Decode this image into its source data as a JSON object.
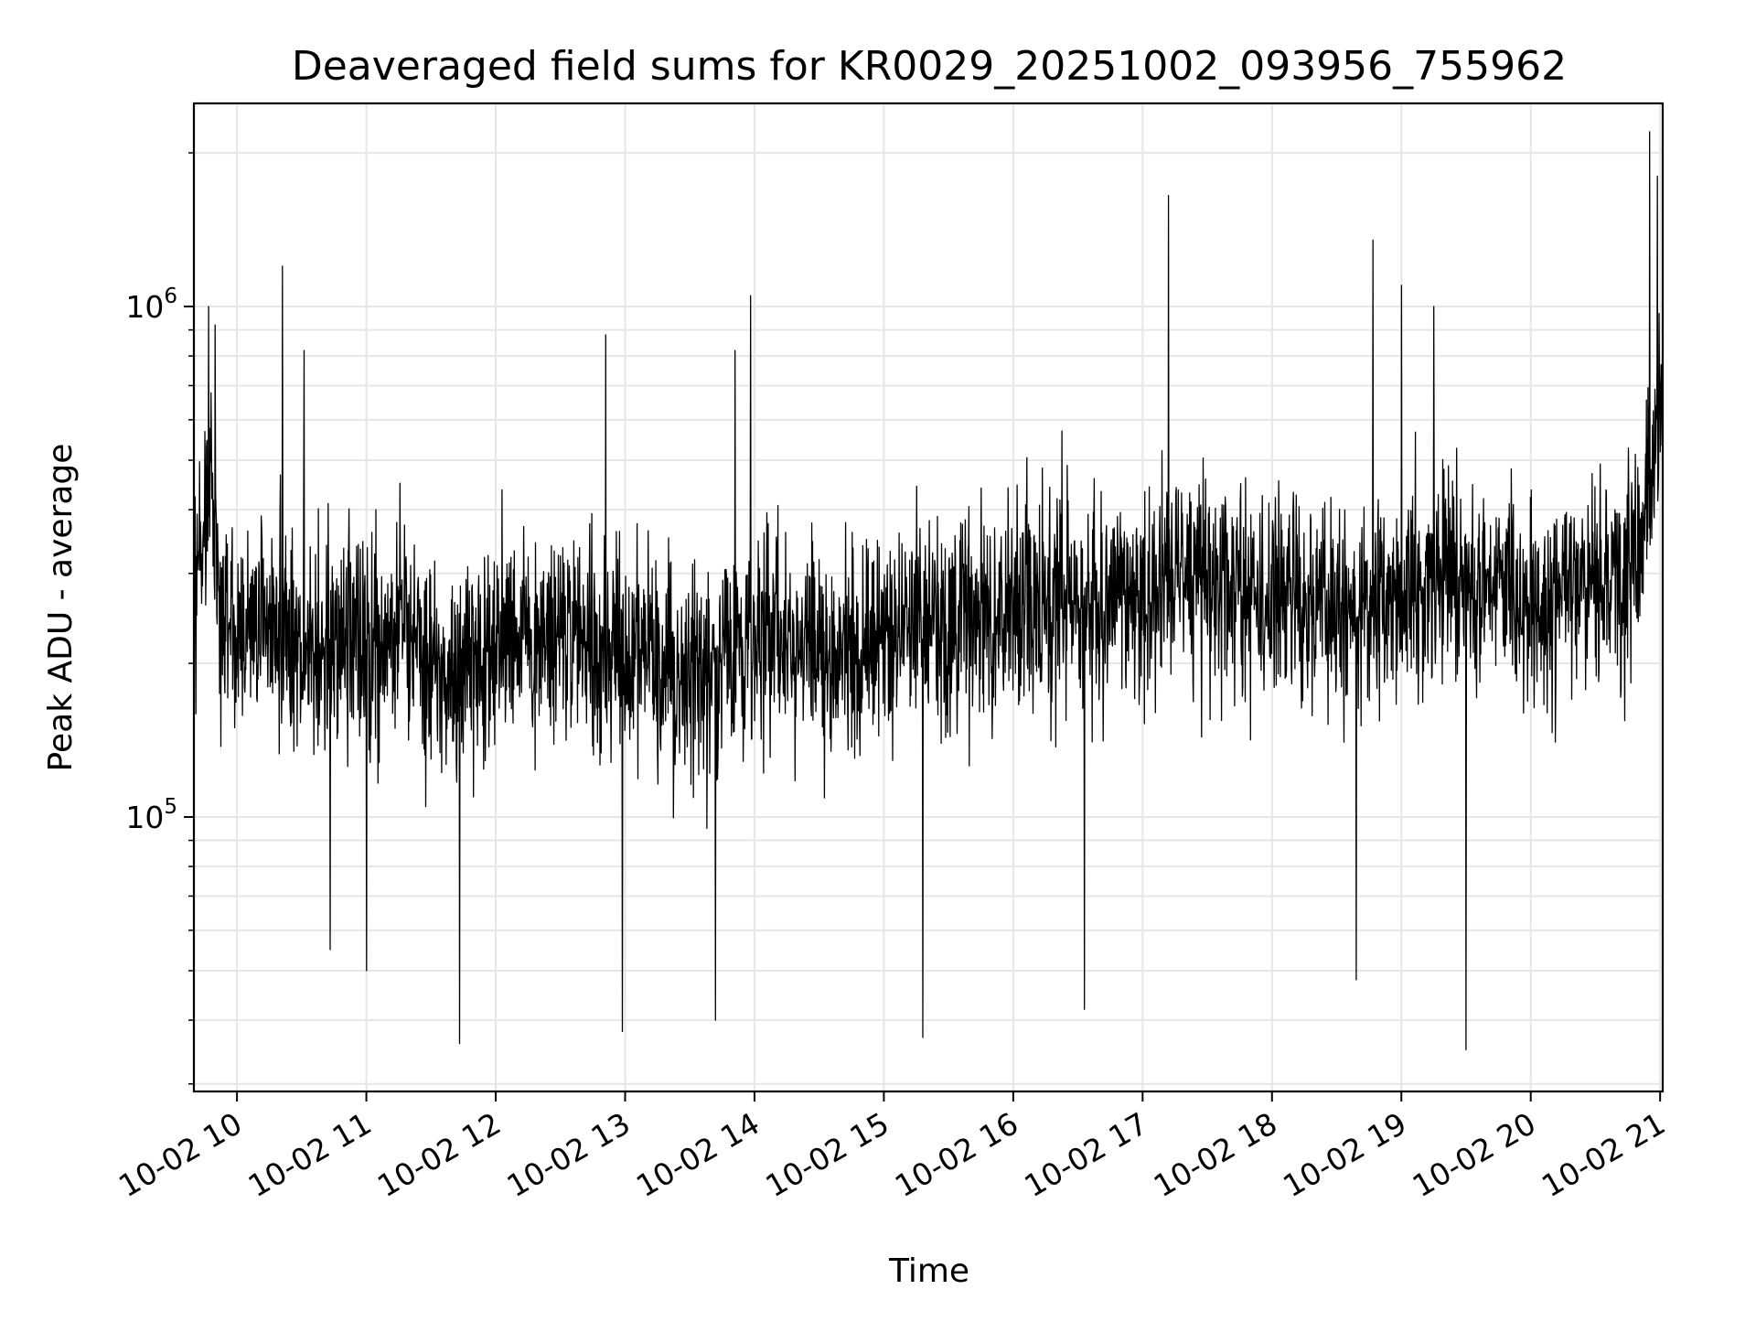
{
  "chart_data": {
    "type": "line",
    "title": "Deaveraged field sums for KR0029_20251002_093956_755962",
    "xlabel": "Time",
    "ylabel": "Peak ADU - average",
    "x_range": [
      "2025-10-02 09:40",
      "2025-10-02 21:01"
    ],
    "xlim_hours": [
      9.667,
      21.02
    ],
    "y_scale": "log",
    "ylim": [
      29000,
      2500000
    ],
    "x_ticks": [
      {
        "hour": 10,
        "label": "10-02 10"
      },
      {
        "hour": 11,
        "label": "10-02 11"
      },
      {
        "hour": 12,
        "label": "10-02 12"
      },
      {
        "hour": 13,
        "label": "10-02 13"
      },
      {
        "hour": 14,
        "label": "10-02 14"
      },
      {
        "hour": 15,
        "label": "10-02 15"
      },
      {
        "hour": 16,
        "label": "10-02 16"
      },
      {
        "hour": 17,
        "label": "10-02 17"
      },
      {
        "hour": 18,
        "label": "10-02 18"
      },
      {
        "hour": 19,
        "label": "10-02 19"
      },
      {
        "hour": 20,
        "label": "10-02 20"
      },
      {
        "hour": 21,
        "label": "10-02 21"
      }
    ],
    "y_ticks": [
      {
        "value": 100000,
        "base": "10",
        "exp": "5"
      },
      {
        "value": 1000000,
        "base": "10",
        "exp": "6"
      }
    ],
    "grid": true,
    "legend": "none",
    "line_color": "#000000",
    "grid_color": "#e6e6e6",
    "series": [
      {
        "hours": [
          9.667,
          9.7,
          9.75,
          9.8,
          9.85,
          9.9,
          10.0,
          10.2,
          10.4,
          10.6,
          10.8,
          11.0,
          11.2,
          11.35,
          11.5,
          11.7,
          12.0,
          12.2,
          12.4,
          12.7,
          12.95,
          13.2,
          13.5,
          13.8,
          13.97,
          14.2,
          14.5,
          14.8,
          15.0,
          15.3,
          15.5,
          15.8,
          16.0,
          16.3,
          16.5,
          16.8,
          17.0,
          17.2,
          17.5,
          17.8,
          18.0,
          18.3,
          18.5,
          18.8,
          19.0,
          19.3,
          19.5,
          19.8,
          20.0,
          20.3,
          20.5,
          20.8,
          20.95,
          21.02
        ],
        "median": [
          250000,
          280000,
          380000,
          480000,
          300000,
          250000,
          230000,
          240000,
          230000,
          210000,
          220000,
          210000,
          230000,
          240000,
          200000,
          190000,
          210000,
          220000,
          230000,
          220000,
          210000,
          205000,
          190000,
          200000,
          220000,
          230000,
          215000,
          210000,
          230000,
          250000,
          240000,
          250000,
          240000,
          260000,
          250000,
          260000,
          270000,
          300000,
          290000,
          270000,
          280000,
          260000,
          270000,
          250000,
          260000,
          300000,
          280000,
          290000,
          260000,
          270000,
          280000,
          300000,
          450000,
          700000
        ]
      }
    ],
    "spikes": [
      {
        "hour": 9.78,
        "value": 1000000
      },
      {
        "hour": 9.83,
        "value": 920000
      },
      {
        "hour": 10.35,
        "value": 1200000
      },
      {
        "hour": 10.52,
        "value": 820000
      },
      {
        "hour": 12.85,
        "value": 880000
      },
      {
        "hour": 13.85,
        "value": 820000
      },
      {
        "hour": 13.97,
        "value": 1050000
      },
      {
        "hour": 17.2,
        "value": 1650000
      },
      {
        "hour": 18.78,
        "value": 1350000
      },
      {
        "hour": 19.0,
        "value": 1100000
      },
      {
        "hour": 19.25,
        "value": 1000000
      },
      {
        "hour": 20.92,
        "value": 2200000
      },
      {
        "hour": 20.98,
        "value": 1800000
      },
      {
        "hour": 11.72,
        "value": 36000
      },
      {
        "hour": 12.98,
        "value": 38000
      },
      {
        "hour": 15.3,
        "value": 37000
      },
      {
        "hour": 16.55,
        "value": 42000
      },
      {
        "hour": 18.65,
        "value": 48000
      },
      {
        "hour": 19.5,
        "value": 35000
      },
      {
        "hour": 10.72,
        "value": 55000
      },
      {
        "hour": 11.0,
        "value": 50000
      },
      {
        "hour": 13.7,
        "value": 40000
      }
    ]
  }
}
